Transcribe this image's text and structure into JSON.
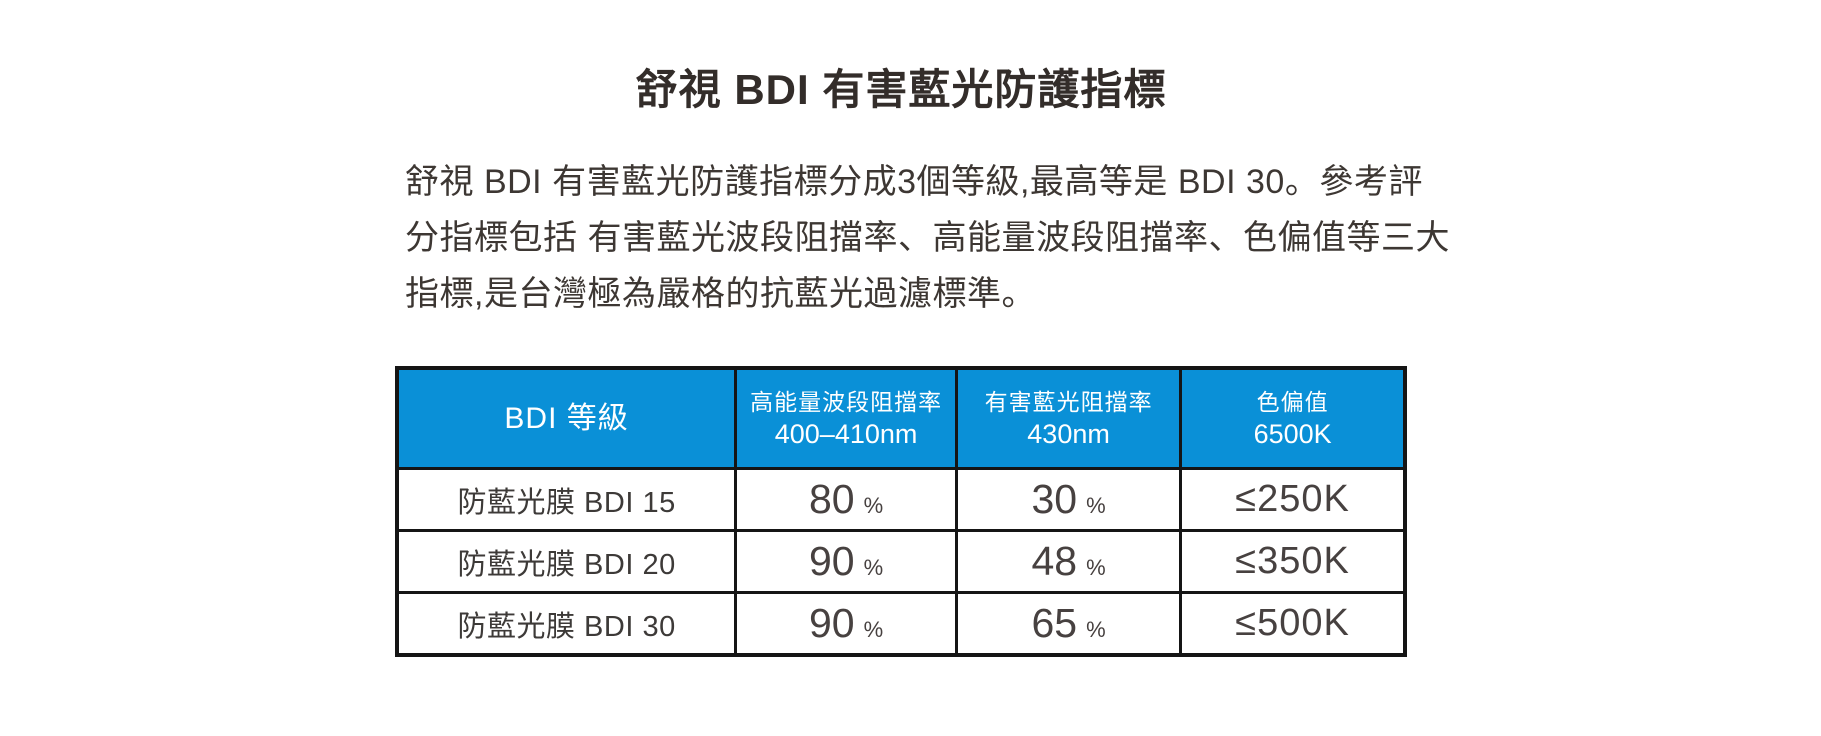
{
  "page": {
    "background_color": "#ffffff"
  },
  "title": "舒視 BDI 有害藍光防護指標",
  "paragraph": {
    "lines": [
      "舒視 BDI 有害藍光防護指標分成3個等級,最高等是 BDI 30。參考評",
      "分指標包括 有害藍光波段阻擋率、高能量波段阻擋率、色偏值等三大",
      "指標,是台灣極為嚴格的抗藍光過濾標準。"
    ]
  },
  "table": {
    "colors": {
      "header_background": "#0a90d7",
      "header_text": "#ffffff",
      "border": "#151515"
    },
    "columns": [
      {
        "title": "BDI 等級",
        "subtitle": ""
      },
      {
        "title": "高能量波段阻擋率",
        "subtitle": "400–410nm"
      },
      {
        "title": "有害藍光阻擋率",
        "subtitle": "430nm"
      },
      {
        "title": "色偏值",
        "subtitle": "6500K"
      }
    ],
    "rows": [
      {
        "label": "防藍光膜 BDI 15",
        "high_energy_value": "80",
        "high_energy_unit": "%",
        "harmful_blue_value": "30",
        "harmful_blue_unit": "%",
        "color_shift": "≤250K"
      },
      {
        "label": "防藍光膜 BDI 20",
        "high_energy_value": "90",
        "high_energy_unit": "%",
        "harmful_blue_value": "48",
        "harmful_blue_unit": "%",
        "color_shift": "≤350K"
      },
      {
        "label": "防藍光膜 BDI 30",
        "high_energy_value": "90",
        "high_energy_unit": "%",
        "harmful_blue_value": "65",
        "harmful_blue_unit": "%",
        "color_shift": "≤500K"
      }
    ]
  }
}
